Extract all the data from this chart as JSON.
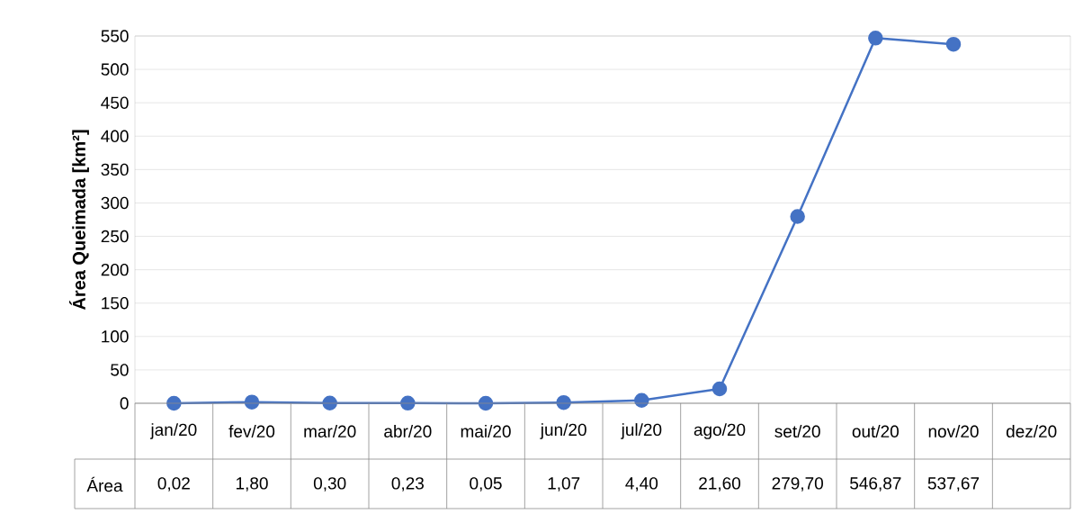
{
  "chart_data": {
    "type": "line",
    "ylabel": "Área Queimada [km²]",
    "categories": [
      "jan/20",
      "fev/20",
      "mar/20",
      "abr/20",
      "mai/20",
      "jun/20",
      "jul/20",
      "ago/20",
      "set/20",
      "out/20",
      "nov/20",
      "dez/20"
    ],
    "series": [
      {
        "name": "Área",
        "color": "#4472c4",
        "values": [
          0.02,
          1.8,
          0.3,
          0.23,
          0.05,
          1.07,
          4.4,
          21.6,
          279.7,
          546.87,
          537.67,
          null
        ],
        "value_labels": [
          "0,02",
          "1,80",
          "0,30",
          "0,23",
          "0,05",
          "1,07",
          "4,40",
          "21,60",
          "279,70",
          "546,87",
          "537,67",
          null
        ]
      }
    ],
    "ylim": [
      0,
      550
    ],
    "yticks": [
      0,
      50,
      100,
      150,
      200,
      250,
      300,
      350,
      400,
      450,
      500,
      550
    ],
    "grid": "y",
    "marker": "circle",
    "line_style": "solid"
  }
}
